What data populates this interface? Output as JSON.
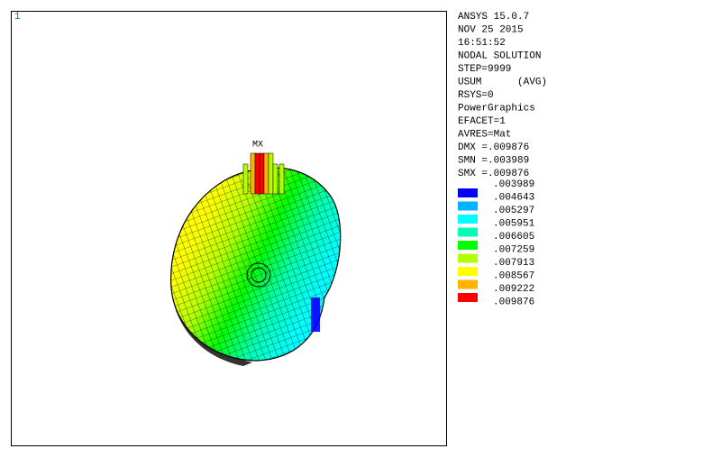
{
  "window_number": "1",
  "max_marker": "MX",
  "info": [
    "ANSYS 15.0.7",
    "NOV 25 2015",
    "16:51:52",
    "NODAL SOLUTION",
    "STEP=9999",
    "USUM      (AVG)",
    "RSYS=0",
    "PowerGraphics",
    "EFACET=1",
    "AVRES=Mat",
    "DMX =.009876",
    "SMN =.003989",
    "SMX =.009876"
  ],
  "legend": {
    "labels": [
      ".003989",
      ".004643",
      ".005297",
      ".005951",
      ".006605",
      ".007259",
      ".007913",
      ".008567",
      ".009222",
      ".009876"
    ],
    "colors": [
      "#0000ff",
      "#00b2ff",
      "#00ffff",
      "#00ffb2",
      "#00ff00",
      "#b2ff00",
      "#ffff00",
      "#ffb200",
      "#ff0000"
    ]
  }
}
